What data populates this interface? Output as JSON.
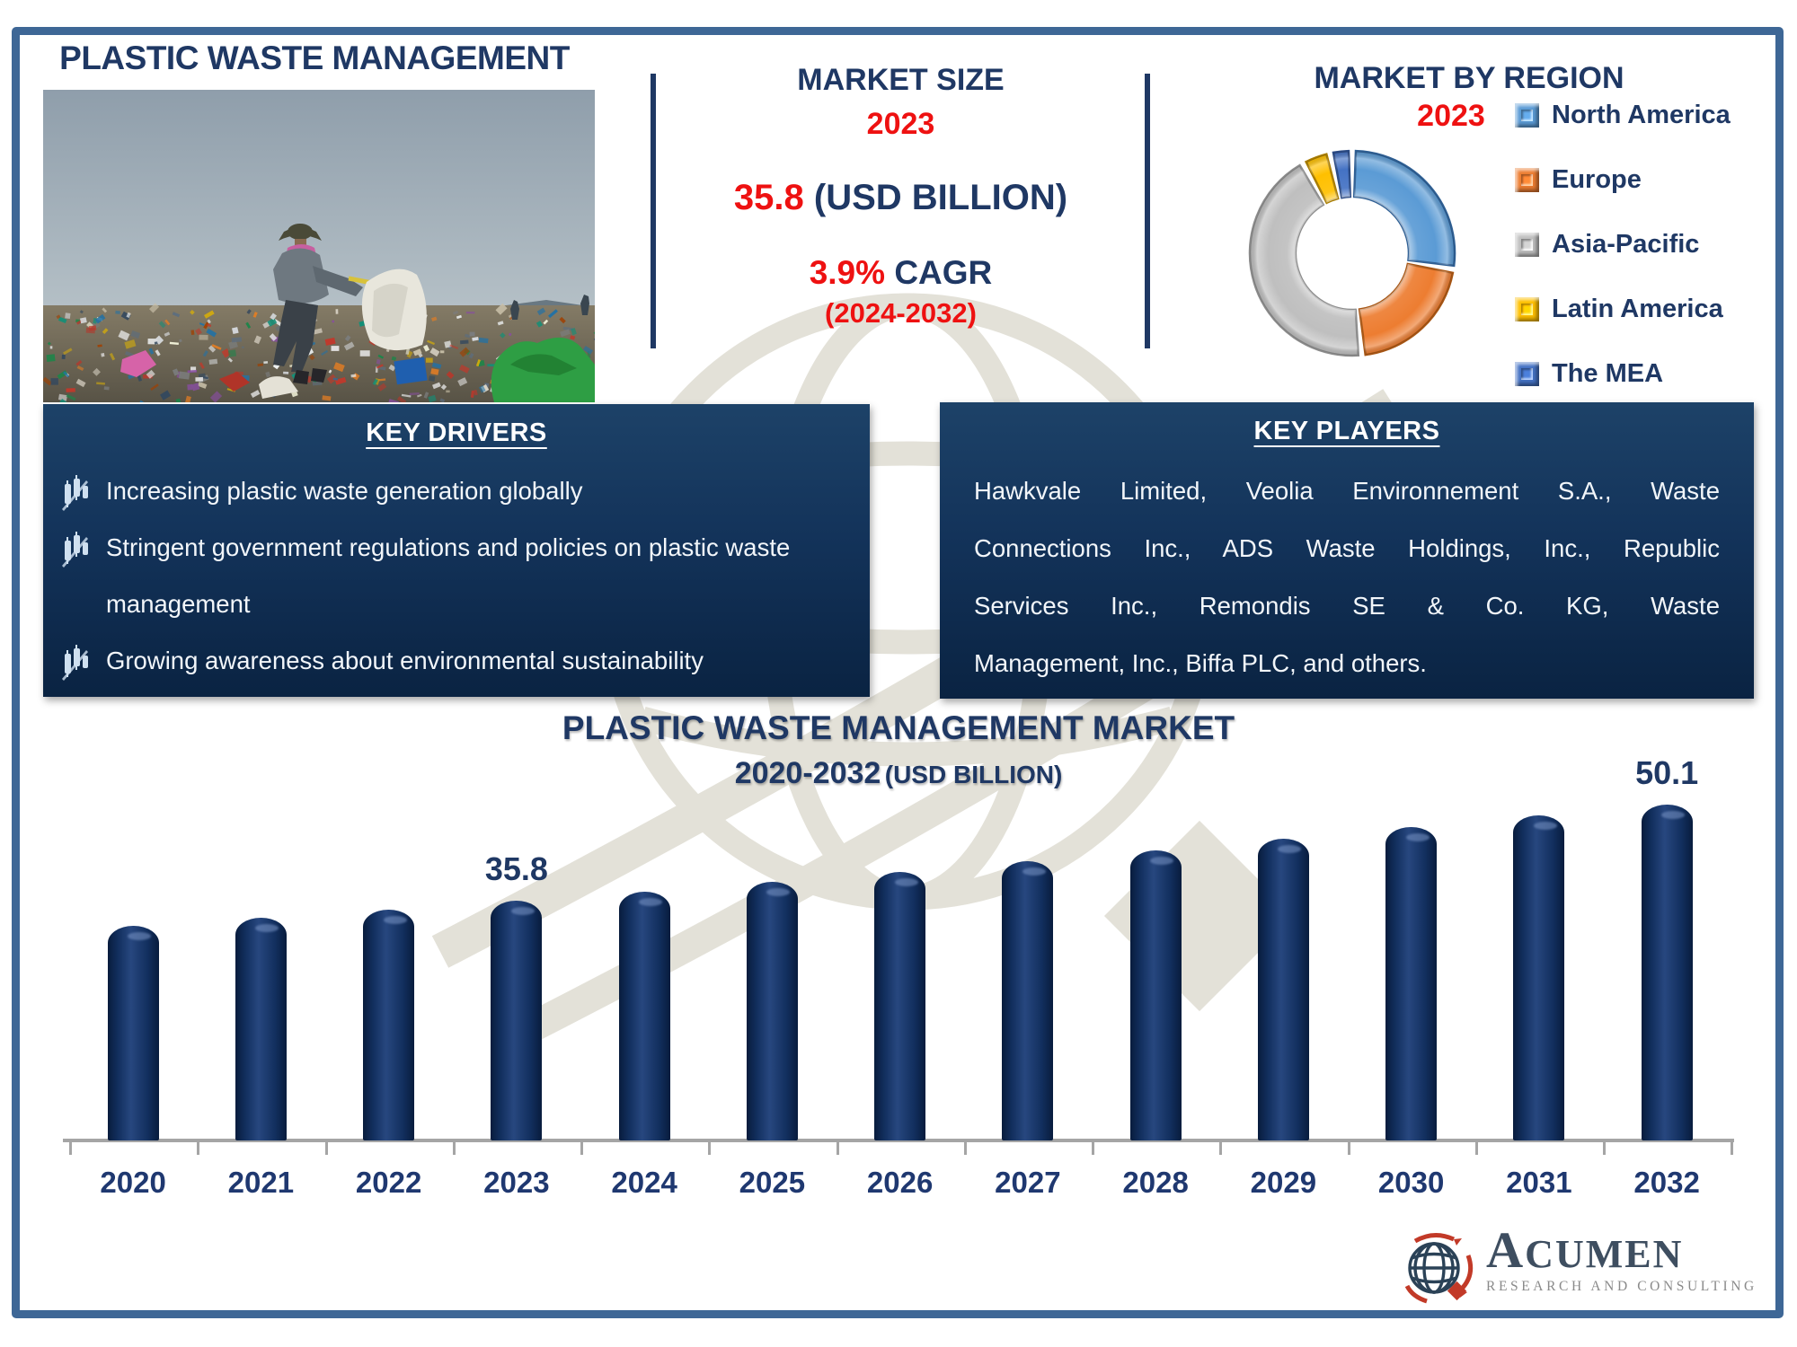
{
  "header": {
    "title": "PLASTIC WASTE MANAGEMENT"
  },
  "market_size": {
    "heading": "MARKET SIZE",
    "year": "2023",
    "value": "35.8",
    "unit": "(USD BILLION)",
    "cagr": "3.9%",
    "cagr_label": "CAGR",
    "period": "(2024-2032)"
  },
  "market_by_region": {
    "heading": "MARKET BY REGION",
    "year": "2023"
  },
  "key_drivers": {
    "heading": "KEY DRIVERS",
    "items": [
      "Increasing plastic waste generation globally",
      "Stringent government regulations and policies on plastic waste management",
      "Growing awareness about environmental sustainability"
    ]
  },
  "key_players": {
    "heading": "KEY PLAYERS",
    "lines": [
      "Hawkvale Limited, Veolia Environnement S.A., Waste",
      "Connections Inc., ADS Waste Holdings, Inc., Republic",
      "Services Inc., Remondis SE & Co. KG, Waste",
      "Management, Inc., Biffa PLC, and others."
    ]
  },
  "chart_data": [
    {
      "type": "pie",
      "title": "MARKET BY REGION",
      "subtitle": "2023",
      "donut": true,
      "legend_position": "right",
      "slices": [
        {
          "label": "North America",
          "value": 27.5,
          "color": "#5B9BD5",
          "edge": "#2E5F94"
        },
        {
          "label": "Europe",
          "value": 21.0,
          "color": "#ED7D31",
          "edge": "#A85614"
        },
        {
          "label": "Asia-Pacific",
          "value": 43.5,
          "color": "#BFBFBF",
          "edge": "#8C8C8C"
        },
        {
          "label": "Latin America",
          "value": 4.5,
          "color": "#FFC000",
          "edge": "#A87C00"
        },
        {
          "label": "The MEA",
          "value": 3.5,
          "color": "#4472C4",
          "edge": "#2A4A85"
        }
      ]
    },
    {
      "type": "bar",
      "title": "PLASTIC WASTE MANAGEMENT MARKET",
      "subtitle_range": "2020-2032",
      "subtitle_unit": "(USD BILLION)",
      "categories": [
        "2020",
        "2021",
        "2022",
        "2023",
        "2024",
        "2025",
        "2026",
        "2027",
        "2028",
        "2029",
        "2030",
        "2031",
        "2032"
      ],
      "values": [
        32.0,
        33.2,
        34.5,
        35.8,
        37.2,
        38.6,
        40.1,
        41.7,
        43.3,
        45.0,
        46.8,
        48.6,
        50.1
      ],
      "data_labels": {
        "2023": "35.8",
        "2032": "50.1"
      },
      "ylim": [
        0,
        53
      ],
      "bar_color": "#122C5C",
      "axis_color": "#A5A5A5",
      "grid": false
    }
  ],
  "colors": {
    "navy": "#1F3864",
    "red": "#EE1111",
    "frame_border": "#3E6796",
    "box_top": "#1D4268",
    "box_bottom": "#0A2342",
    "watermark": "#E3E1D8"
  },
  "logo": {
    "name": "ACUMEN",
    "tagline": "RESEARCH AND CONSULTING"
  }
}
